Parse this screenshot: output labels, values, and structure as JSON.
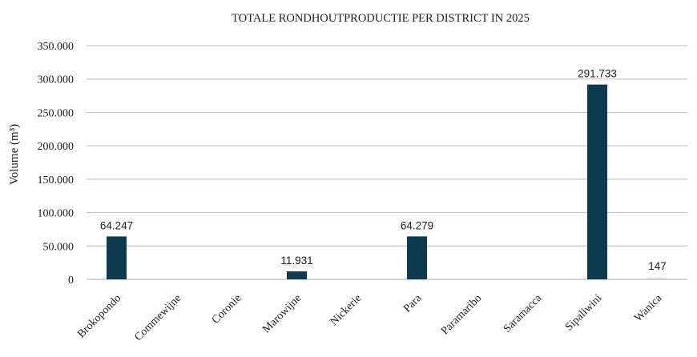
{
  "chart_data": {
    "type": "bar",
    "title": "TOTALE RONDHOUTPRODUCTIE PER DISTRICT IN 2025",
    "ylabel": "Volume (m³)",
    "xlabel": "",
    "ylim": [
      0,
      350000
    ],
    "yticks": [
      0,
      50000,
      100000,
      150000,
      200000,
      250000,
      300000,
      350000
    ],
    "ytick_labels": [
      "0",
      "50.000",
      "100.000",
      "150.000",
      "200.000",
      "250.000",
      "300.000",
      "350.000"
    ],
    "grid": true,
    "legend": "none",
    "bar_color": "#0f3a4d",
    "categories": [
      "Brokopondo",
      "Commewijne",
      "Coronie",
      "Marowijne",
      "Nickerie",
      "Para",
      "Paramaribo",
      "Saramacca",
      "Sipaliwini",
      "Wanica"
    ],
    "values": [
      64247,
      0,
      0,
      11931,
      0,
      64279,
      0,
      0,
      291733,
      147
    ],
    "data_labels": [
      "64.247",
      "",
      "",
      "11.931",
      "",
      "64.279",
      "",
      "",
      "291.733",
      "147"
    ]
  }
}
